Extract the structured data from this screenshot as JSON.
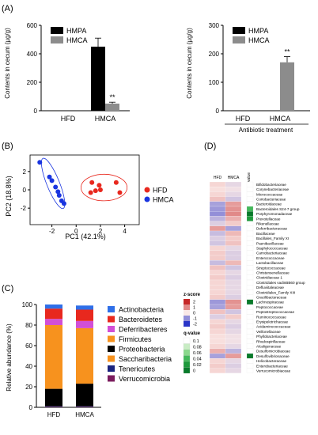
{
  "panels": {
    "A": "(A)",
    "B": "(B)",
    "C": "(C)",
    "D": "(D)"
  },
  "chart_data": [
    {
      "panel": "A-left",
      "type": "bar",
      "ylabel": "Contents in cecum (µg/g)",
      "ylim": [
        0,
        600
      ],
      "yticks": [
        "0",
        "200",
        "400",
        "600"
      ],
      "categories": [
        "HFD",
        "HMCA"
      ],
      "series": [
        {
          "name": "HMPA",
          "color": "#000000",
          "values": [
            0,
            450
          ],
          "errors": [
            0,
            60
          ]
        },
        {
          "name": "HMCA",
          "color": "#8c8c8c",
          "values": [
            0,
            50
          ],
          "errors": [
            0,
            10
          ]
        }
      ],
      "annotations": [
        "**"
      ],
      "legend_position": "top-left"
    },
    {
      "panel": "A-right",
      "type": "bar",
      "ylabel": "Contents in cecum (µg/g)",
      "ylim": [
        0,
        300
      ],
      "yticks": [
        "0",
        "100",
        "200",
        "300"
      ],
      "categories": [
        "HFD",
        "HMCA"
      ],
      "series": [
        {
          "name": "HMPA",
          "color": "#000000",
          "values": [
            0,
            0
          ],
          "errors": [
            0,
            0
          ]
        },
        {
          "name": "HMCA",
          "color": "#8c8c8c",
          "values": [
            0,
            170
          ],
          "errors": [
            0,
            20
          ]
        }
      ],
      "annotations": [
        "**"
      ],
      "bracket_label": "Antibiotic treatment",
      "legend_position": "top-left"
    },
    {
      "panel": "B",
      "type": "scatter",
      "xlabel": "PC1 (42.1%)",
      "ylabel": "PC2 (18.8%)",
      "xlim": [
        -3.8,
        5.2
      ],
      "ylim": [
        -3.8,
        3.8
      ],
      "xticks": [
        -2,
        0,
        2,
        4
      ],
      "yticks": [
        -2,
        0,
        2
      ],
      "series": [
        {
          "name": "HFD",
          "color": "#e8281e",
          "points": [
            [
              1.3,
              0.8
            ],
            [
              1.2,
              -0.3
            ],
            [
              1.6,
              -0.1
            ],
            [
              1.9,
              0.5
            ],
            [
              2.0,
              0.0
            ],
            [
              3.3,
              0.8
            ],
            [
              3.6,
              -0.3
            ]
          ]
        },
        {
          "name": "HMCA",
          "color": "#1a35e0",
          "points": [
            [
              -3.0,
              3.0
            ],
            [
              -2.2,
              1.4
            ],
            [
              -2.0,
              1.0
            ],
            [
              -1.7,
              0.3
            ],
            [
              -1.5,
              -0.2
            ],
            [
              -1.4,
              -0.6
            ],
            [
              -1.2,
              -1.2
            ],
            [
              -1.0,
              -1.5
            ]
          ]
        }
      ],
      "legend_position": "right"
    },
    {
      "panel": "C",
      "type": "bar",
      "stacked": true,
      "ylabel": "Relative abundance (%)",
      "ylim": [
        0,
        100
      ],
      "yticks": [
        "0",
        "20",
        "40",
        "60",
        "80",
        "100"
      ],
      "categories": [
        "HFD",
        "HMCA"
      ],
      "series": [
        {
          "name": "Verrucomicrobia",
          "color": "#7b1c5e",
          "values": [
            0.5,
            0.5
          ]
        },
        {
          "name": "Tenericutes",
          "color": "#1a237e",
          "values": [
            0.5,
            0.5
          ]
        },
        {
          "name": "Saccharibacteria",
          "color": "#f7921e",
          "values": [
            0,
            0
          ]
        },
        {
          "name": "Proteobacteria",
          "color": "#000000",
          "values": [
            17,
            22
          ]
        },
        {
          "name": "Firmicutes",
          "color": "#f7921e",
          "values": [
            62,
            54
          ]
        },
        {
          "name": "Deferribacteres",
          "color": "#d24fd6",
          "values": [
            6,
            7
          ]
        },
        {
          "name": "Bacteroidetes",
          "color": "#e8281e",
          "values": [
            10,
            11
          ]
        },
        {
          "name": "Actinobacteria",
          "color": "#2f6fe8",
          "values": [
            4,
            4
          ]
        }
      ],
      "legend_order": [
        "Actinobacteria",
        "Bacteroidetes",
        "Deferribacteres",
        "Firmicutes",
        "Proteobacteria",
        "Saccharibacteria",
        "Tenericutes",
        "Verrucomicrobia"
      ]
    },
    {
      "panel": "D",
      "type": "heatmap",
      "columns": [
        "HFD",
        "HMCA"
      ],
      "qvalue_label": "q-value",
      "zscore_label": "z-score",
      "zscore_ticks": [
        "2",
        "1",
        "0",
        "-1",
        "-2"
      ],
      "qvalue_legend_label": "q-value",
      "qvalue_ticks": [
        "0.1",
        "0.08",
        "0.06",
        "0.04",
        "0.02",
        "0"
      ],
      "rows": [
        "Bifidobacteriaceae",
        "Corynebacteriaceae",
        "Micrococcaceae",
        "Coriobacteriaceae",
        "Bacteroidaceae",
        "Bacteroidales S24-7 group",
        "Porphyromonadaceae",
        "Prevotellaceae",
        "Rikenellaceae",
        "Deferribacteraceae",
        "Bacillaceae",
        "Bacillales_Family XI",
        "Paenibacillaceae",
        "Staphylococcaceae",
        "Carnobacteriaceae",
        "Enterococcaceae",
        "Lactobacillaceae",
        "Streptococcaceae",
        "Christensenellaceae",
        "Clostridiaceae 1",
        "Clostridiales vadinBB60 group",
        "Defluviitaleaceae",
        "Clostridiales_Family XIII",
        "Gracilibacteraceae",
        "Lachnospiraceae",
        "Peptococcaceae",
        "Peptostreptococcaceae",
        "Ruminococcaceae",
        "Erysipelotrichaceae",
        "Acidaminococcaceae",
        "Veillonellaceae",
        "Phyllobacteriaceae",
        "Rhodospirillaceae",
        "Alcaligenaceae",
        "Desulfomicrobiaceae",
        "Desulfovibrionaceae",
        "Helicobacteraceae",
        "Enterobacteriaceae",
        "Verrucomicrobiaceae"
      ],
      "zscores": [
        [
          0.2,
          -0.2
        ],
        [
          0.1,
          -0.1
        ],
        [
          0.2,
          -0.2
        ],
        [
          0.4,
          -0.4
        ],
        [
          -0.8,
          0.8
        ],
        [
          -0.9,
          0.9
        ],
        [
          -1.0,
          1.0
        ],
        [
          -0.6,
          0.6
        ],
        [
          -0.3,
          0.3
        ],
        [
          0.8,
          -0.8
        ],
        [
          -0.5,
          0.5
        ],
        [
          -0.3,
          0.3
        ],
        [
          -0.4,
          0.4
        ],
        [
          0.2,
          -0.2
        ],
        [
          0.3,
          -0.3
        ],
        [
          0.3,
          -0.3
        ],
        [
          -0.5,
          0.5
        ],
        [
          0.4,
          -0.4
        ],
        [
          0.2,
          -0.2
        ],
        [
          0.3,
          -0.3
        ],
        [
          0.2,
          -0.2
        ],
        [
          0.2,
          -0.2
        ],
        [
          0.2,
          -0.2
        ],
        [
          0.3,
          -0.3
        ],
        [
          -0.9,
          0.9
        ],
        [
          -0.8,
          0.8
        ],
        [
          0.4,
          -0.4
        ],
        [
          -0.3,
          0.3
        ],
        [
          0.2,
          -0.2
        ],
        [
          0.3,
          -0.3
        ],
        [
          0.2,
          -0.2
        ],
        [
          0.1,
          -0.1
        ],
        [
          0.1,
          -0.1
        ],
        [
          0.2,
          -0.2
        ],
        [
          0.6,
          -0.6
        ],
        [
          -0.8,
          0.8
        ],
        [
          0.2,
          -0.2
        ],
        [
          0.3,
          -0.3
        ],
        [
          0.2,
          -0.2
        ]
      ],
      "qvalues": [
        0.1,
        0.1,
        0.1,
        0.1,
        0.1,
        0.04,
        0.0,
        0.02,
        0.1,
        0.1,
        0.1,
        0.1,
        0.1,
        0.1,
        0.1,
        0.1,
        0.1,
        0.1,
        0.1,
        0.1,
        0.1,
        0.1,
        0.1,
        0.1,
        0.0,
        0.1,
        0.1,
        0.1,
        0.1,
        0.1,
        0.1,
        0.1,
        0.1,
        0.1,
        0.1,
        0.0,
        0.1,
        0.1,
        0.1
      ],
      "z_colors": {
        "high": "#c62828",
        "mid": "#fbe9e7",
        "low": "#2a35c8"
      },
      "q_colors": [
        "#ffffff",
        "#c8ecc4",
        "#8ad88c",
        "#43b85a",
        "#1e9a3c",
        "#087a2a"
      ]
    }
  ]
}
